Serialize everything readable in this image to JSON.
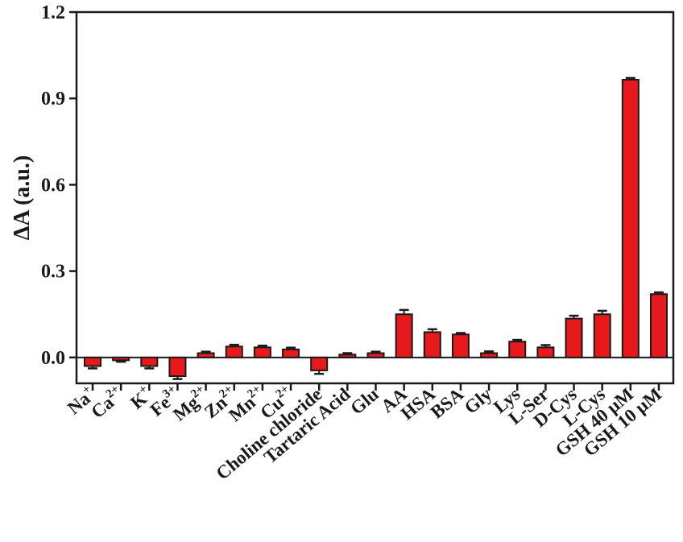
{
  "chart_data": {
    "type": "bar",
    "ylabel": "ΔA (a.u.)",
    "ylim": [
      -0.09,
      1.2
    ],
    "yticks": [
      0.0,
      0.3,
      0.6,
      0.9,
      1.2
    ],
    "ytick_labels": [
      "0.0",
      "0.3",
      "0.6",
      "0.9",
      "1.2"
    ],
    "bar_color": "#e8191c",
    "categories": [
      {
        "label": "Na",
        "sup": "+"
      },
      {
        "label": "Ca",
        "sup": "2+"
      },
      {
        "label": "K",
        "sup": "+"
      },
      {
        "label": "Fe",
        "sup": "3+"
      },
      {
        "label": "Mg",
        "sup": "2+"
      },
      {
        "label": "Zn",
        "sup": "2+"
      },
      {
        "label": "Mn",
        "sup": "2+"
      },
      {
        "label": "Cu",
        "sup": "2+"
      },
      {
        "label": "Choline chloride",
        "sup": ""
      },
      {
        "label": "Tartaric Acid",
        "sup": ""
      },
      {
        "label": "Glu",
        "sup": ""
      },
      {
        "label": "AA",
        "sup": ""
      },
      {
        "label": "HSA",
        "sup": ""
      },
      {
        "label": "BSA",
        "sup": ""
      },
      {
        "label": "Gly",
        "sup": ""
      },
      {
        "label": "Lys",
        "sup": ""
      },
      {
        "label": "L-Ser",
        "sup": ""
      },
      {
        "label": "D-Cys",
        "sup": ""
      },
      {
        "label": "L-Cys",
        "sup": ""
      },
      {
        "label": "GSH 40 μM",
        "sup": ""
      },
      {
        "label": "GSH 10 μM",
        "sup": ""
      }
    ],
    "values": [
      -0.03,
      -0.01,
      -0.03,
      -0.065,
      0.015,
      0.038,
      0.035,
      0.028,
      -0.045,
      0.01,
      0.015,
      0.15,
      0.088,
      0.08,
      0.015,
      0.055,
      0.035,
      0.135,
      0.15,
      0.965,
      0.22
    ],
    "errors": [
      0.008,
      0.005,
      0.008,
      0.01,
      0.005,
      0.006,
      0.006,
      0.006,
      0.012,
      0.005,
      0.005,
      0.015,
      0.01,
      0.005,
      0.006,
      0.006,
      0.008,
      0.01,
      0.012,
      0.006,
      0.006
    ]
  }
}
